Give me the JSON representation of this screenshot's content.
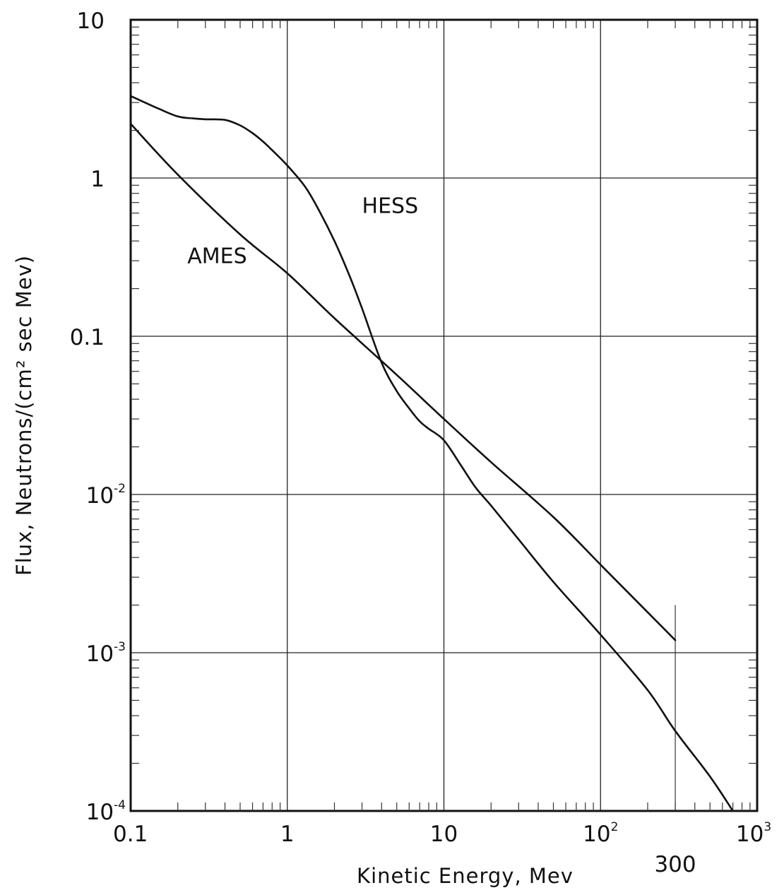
{
  "chart_data": {
    "type": "line",
    "title": "",
    "xlabel": "Kinetic  Energy,  Mev",
    "ylabel": "Flux,  Neutrons/(cm² sec  Mev)",
    "xscale": "log",
    "yscale": "log",
    "xlim": [
      0.1,
      1000
    ],
    "ylim": [
      0.0001,
      10
    ],
    "grid": true,
    "x_ticks": [
      {
        "value": 0.1,
        "base": "0.1",
        "sup": ""
      },
      {
        "value": 1,
        "base": "1",
        "sup": ""
      },
      {
        "value": 10,
        "base": "10",
        "sup": ""
      },
      {
        "value": 100,
        "base": "10",
        "sup": "2"
      },
      {
        "value": 1000,
        "base": "10",
        "sup": "3"
      }
    ],
    "y_ticks": [
      {
        "value": 10,
        "base": "10",
        "sup": ""
      },
      {
        "value": 1,
        "base": "1",
        "sup": ""
      },
      {
        "value": 0.1,
        "base": "0.1",
        "sup": ""
      },
      {
        "value": 0.01,
        "base": "10",
        "sup": "-2"
      },
      {
        "value": 0.001,
        "base": "10",
        "sup": "-3"
      },
      {
        "value": 0.0001,
        "base": "10",
        "sup": "-4"
      }
    ],
    "extra_x_marker": {
      "value": 300,
      "label": "300"
    },
    "series": [
      {
        "name": "HESS",
        "x": [
          0.1,
          0.15,
          0.2,
          0.25,
          0.3,
          0.4,
          0.5,
          0.6,
          0.7,
          0.8,
          1.0,
          1.3,
          1.6,
          2.0,
          2.5,
          3.0,
          4.0,
          5.0,
          6.0,
          7.0,
          8.0,
          10,
          13,
          16,
          20,
          30,
          50,
          100,
          200,
          300,
          500,
          700
        ],
        "y": [
          3.3,
          2.75,
          2.45,
          2.38,
          2.35,
          2.33,
          2.15,
          1.92,
          1.7,
          1.5,
          1.2,
          0.88,
          0.62,
          0.4,
          0.24,
          0.15,
          0.068,
          0.045,
          0.035,
          0.029,
          0.026,
          0.022,
          0.015,
          0.011,
          0.0085,
          0.0052,
          0.0028,
          0.0013,
          0.00058,
          0.00032,
          0.000165,
          0.0001
        ]
      },
      {
        "name": "AMES",
        "x": [
          0.1,
          0.2,
          0.5,
          1,
          2,
          5,
          10,
          20,
          50,
          100,
          200,
          300
        ],
        "y": [
          2.2,
          1.05,
          0.44,
          0.25,
          0.13,
          0.057,
          0.03,
          0.016,
          0.0072,
          0.0036,
          0.0018,
          0.0012
        ]
      }
    ],
    "series_labels": [
      {
        "name": "HESS",
        "text": "HESS",
        "x": 3,
        "y": 0.6
      },
      {
        "name": "AMES",
        "text": "AMES",
        "x": 0.23,
        "y": 0.29
      }
    ]
  }
}
